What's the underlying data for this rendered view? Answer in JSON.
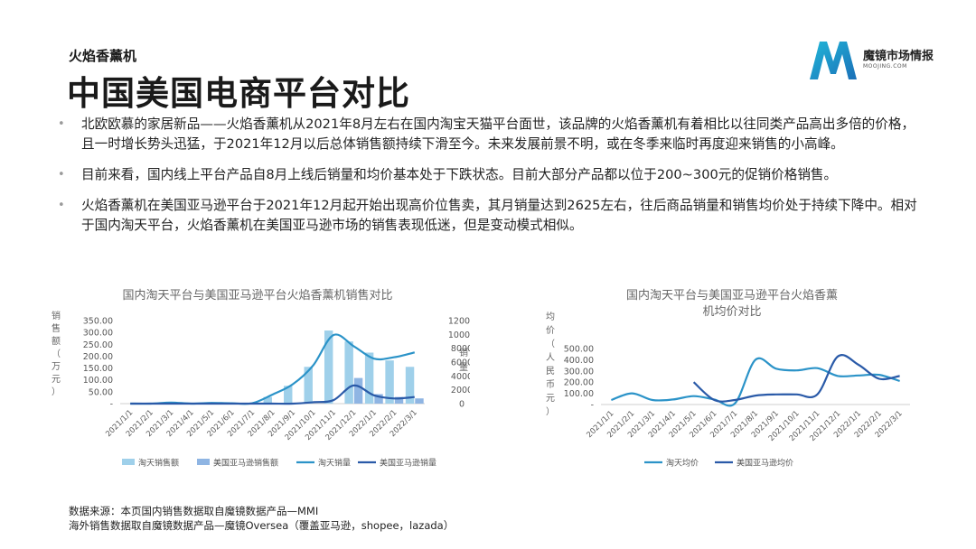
{
  "header": {
    "subtitle": "火焰香薰机",
    "title": "中国美国电商平台对比"
  },
  "logo": {
    "name": "魔镜市场情报",
    "en": "MOOJING.COM",
    "color": "#1e9bd0"
  },
  "bullets": [
    "北欧欧慕的家居新品——火焰香薰机从2021年8月左右在国内淘宝天猫平台面世，该品牌的火焰香薰机有着相比以往同类产品高出多倍的价格，且一时增长势头迅猛，于2021年12月以后总体销售额持续下滑至今。未来发展前景不明，或在冬季来临时再度迎来销售的小高峰。",
    "目前来看，国内线上平台产品自8月上线后销量和均价基本处于下跌状态。目前大部分产品都以位于200~300元的促销价格销售。",
    "火焰香薰机在美国亚马逊平台于2021年12月起开始出现高价位售卖，其月销量达到2625左右，往后商品销量和销售均价处于持续下降中。相对于国内淘天平台，火焰香薰机在美国亚马逊市场的销售表现低迷，但是变动模式相似。"
  ],
  "source": {
    "line1": "数据来源：本页国内销售数据取自魔镜数据产品—MMI",
    "line2": "海外销售数据取自魔镜数据产品—魔镜Oversea（覆盖亚马逊，shopee，lazada）"
  },
  "chart_data": [
    {
      "type": "bar",
      "title": "国内淘天平台与美国亚马逊平台火焰香薰机销售对比",
      "categories": [
        "2021/1/1",
        "2021/2/1",
        "2021/3/1",
        "2021/4/1",
        "2021/5/1",
        "2021/6/1",
        "2021/7/1",
        "2021/8/1",
        "2021/9/1",
        "2021/10/1",
        "2021/11/1",
        "2021/12/1",
        "2022/1/1",
        "2022/2/1",
        "2022/3/1"
      ],
      "ylabel": "销售额（万元）",
      "y2label": "销量",
      "yticks": [
        "-",
        "50.00",
        "100.00",
        "150.00",
        "200.00",
        "250.00",
        "300.00",
        "350.00"
      ],
      "y2ticks": [
        "0",
        "2000",
        "4000",
        "6000",
        "8000",
        "10000",
        "12000"
      ],
      "ylim": [
        0,
        350
      ],
      "y2lim": [
        0,
        12000
      ],
      "series": [
        {
          "name": "淘天销售额",
          "kind": "bar",
          "axis": "left",
          "color": "#9fd0ea",
          "values": [
            0,
            0,
            0,
            0,
            0,
            0,
            1,
            28,
            75,
            155,
            308,
            262,
            215,
            182,
            155
          ]
        },
        {
          "name": "美国亚马逊销售额",
          "kind": "bar",
          "axis": "left",
          "color": "#8fb5e3",
          "values": [
            0,
            0,
            0,
            0,
            0,
            0,
            0,
            0,
            0,
            0,
            0,
            108,
            40,
            28,
            22
          ]
        },
        {
          "name": "淘天销量",
          "kind": "line",
          "axis": "right",
          "color": "#2b93c8",
          "values": [
            0,
            0,
            150,
            0,
            100,
            50,
            50,
            1300,
            2800,
            5500,
            9900,
            8300,
            6500,
            6700,
            7400
          ]
        },
        {
          "name": "美国亚马逊销量",
          "kind": "line",
          "axis": "right",
          "color": "#2a5aa8",
          "values": [
            0,
            0,
            0,
            0,
            0,
            0,
            0,
            0,
            0,
            200,
            500,
            2625,
            1200,
            750,
            950
          ]
        }
      ],
      "legend_position": "bottom"
    },
    {
      "type": "line",
      "title": "国内淘天平台与美国亚马逊平台火焰香薰机均价对比",
      "categories": [
        "2021/1/1",
        "2021/2/1",
        "2021/3/1",
        "2021/4/1",
        "2021/5/1",
        "2021/6/1",
        "2021/7/1",
        "2021/8/1",
        "2021/9/1",
        "2021/10/1",
        "2021/11/1",
        "2021/12/1",
        "2022/1/1",
        "2022/2/1",
        "2022/3/1"
      ],
      "ylabel": "均价（人民币元）",
      "yticks": [
        "-",
        "100.00",
        "200.00",
        "300.00",
        "400.00",
        "500.00"
      ],
      "ylim": [
        0,
        500
      ],
      "series": [
        {
          "name": "淘天均价",
          "color": "#2b93c8",
          "values": [
            40,
            100,
            40,
            45,
            75,
            45,
            10,
            400,
            320,
            305,
            325,
            255,
            260,
            265,
            210
          ]
        },
        {
          "name": "美国亚马逊均价",
          "color": "#2a5aa8",
          "values": [
            null,
            null,
            null,
            null,
            200,
            40,
            40,
            80,
            90,
            90,
            90,
            430,
            355,
            230,
            255
          ]
        }
      ],
      "legend_position": "bottom"
    }
  ]
}
